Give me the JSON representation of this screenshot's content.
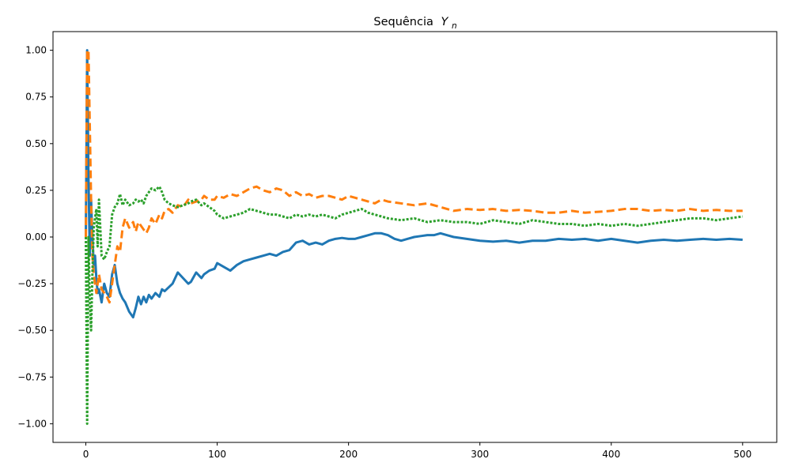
{
  "chart_data": {
    "type": "line",
    "title": "Sequência",
    "title_math": "Y",
    "title_math_sub": "n",
    "xlabel": "",
    "ylabel": "",
    "xlim": [
      -25,
      526
    ],
    "ylim": [
      -1.1,
      1.1
    ],
    "x_ticks": [
      0,
      100,
      200,
      300,
      400,
      500
    ],
    "x_tick_labels": [
      "0",
      "100",
      "200",
      "300",
      "400",
      "500"
    ],
    "y_ticks": [
      -1.0,
      -0.75,
      -0.5,
      -0.25,
      0.0,
      0.25,
      0.5,
      0.75,
      1.0
    ],
    "y_tick_labels": [
      "−1.00",
      "−0.75",
      "−0.50",
      "−0.25",
      "0.00",
      "0.25",
      "0.50",
      "0.75",
      "1.00"
    ],
    "grid": false,
    "legend": "none",
    "series": [
      {
        "color": "#1f77b4",
        "dash": "solid",
        "x": [
          0,
          1,
          2,
          3,
          4,
          5,
          6,
          7,
          8,
          9,
          10,
          12,
          14,
          16,
          18,
          20,
          22,
          24,
          26,
          28,
          30,
          33,
          36,
          38,
          40,
          42,
          44,
          46,
          48,
          50,
          53,
          56,
          58,
          60,
          63,
          66,
          70,
          74,
          78,
          80,
          84,
          88,
          90,
          94,
          98,
          100,
          105,
          110,
          115,
          120,
          125,
          130,
          135,
          140,
          145,
          150,
          155,
          160,
          165,
          170,
          175,
          180,
          185,
          190,
          195,
          200,
          205,
          210,
          215,
          220,
          225,
          230,
          235,
          240,
          245,
          250,
          255,
          260,
          265,
          270,
          275,
          280,
          290,
          300,
          310,
          320,
          330,
          340,
          350,
          360,
          370,
          380,
          390,
          400,
          410,
          420,
          430,
          440,
          450,
          460,
          470,
          480,
          490,
          500
        ],
        "y": [
          0.0,
          1.0,
          0.33,
          -0.1,
          0.2,
          0.0,
          -0.15,
          -0.1,
          -0.22,
          -0.3,
          -0.28,
          -0.35,
          -0.25,
          -0.3,
          -0.32,
          -0.2,
          -0.15,
          -0.25,
          -0.3,
          -0.33,
          -0.35,
          -0.4,
          -0.43,
          -0.38,
          -0.32,
          -0.36,
          -0.32,
          -0.35,
          -0.31,
          -0.33,
          -0.3,
          -0.32,
          -0.28,
          -0.29,
          -0.27,
          -0.25,
          -0.19,
          -0.22,
          -0.25,
          -0.24,
          -0.19,
          -0.22,
          -0.2,
          -0.18,
          -0.17,
          -0.14,
          -0.16,
          -0.18,
          -0.15,
          -0.13,
          -0.12,
          -0.11,
          -0.1,
          -0.09,
          -0.1,
          -0.08,
          -0.07,
          -0.03,
          -0.02,
          -0.04,
          -0.03,
          -0.04,
          -0.02,
          -0.01,
          -0.005,
          -0.01,
          -0.01,
          0.0,
          0.01,
          0.02,
          0.02,
          0.01,
          -0.01,
          -0.02,
          -0.01,
          0.0,
          0.005,
          0.01,
          0.01,
          0.02,
          0.01,
          0.0,
          -0.01,
          -0.02,
          -0.025,
          -0.02,
          -0.03,
          -0.02,
          -0.02,
          -0.01,
          -0.015,
          -0.01,
          -0.02,
          -0.01,
          -0.02,
          -0.03,
          -0.02,
          -0.015,
          -0.02,
          -0.015,
          -0.01,
          -0.015,
          -0.01,
          -0.015
        ]
      },
      {
        "color": "#ff7f0e",
        "dash": "dashed",
        "x": [
          0,
          1,
          2,
          3,
          4,
          5,
          6,
          7,
          8,
          9,
          10,
          12,
          14,
          16,
          18,
          20,
          22,
          24,
          26,
          28,
          30,
          33,
          36,
          38,
          40,
          42,
          44,
          46,
          48,
          50,
          53,
          56,
          58,
          60,
          63,
          66,
          70,
          74,
          78,
          80,
          84,
          88,
          90,
          94,
          98,
          100,
          105,
          110,
          115,
          120,
          125,
          130,
          135,
          140,
          145,
          150,
          155,
          160,
          165,
          170,
          175,
          180,
          185,
          190,
          195,
          200,
          205,
          210,
          215,
          220,
          225,
          230,
          240,
          250,
          260,
          270,
          280,
          290,
          300,
          310,
          320,
          330,
          340,
          350,
          360,
          370,
          380,
          390,
          400,
          410,
          420,
          430,
          440,
          450,
          460,
          470,
          480,
          490,
          500
        ],
        "y": [
          0.0,
          1.0,
          1.0,
          0.6,
          0.2,
          -0.1,
          -0.2,
          -0.25,
          -0.3,
          -0.25,
          -0.2,
          -0.28,
          -0.3,
          -0.32,
          -0.35,
          -0.25,
          -0.15,
          -0.05,
          -0.08,
          0.05,
          0.1,
          0.05,
          0.08,
          0.03,
          0.08,
          0.06,
          0.04,
          0.02,
          0.05,
          0.1,
          0.07,
          0.12,
          0.1,
          0.14,
          0.15,
          0.13,
          0.17,
          0.16,
          0.2,
          0.18,
          0.19,
          0.2,
          0.22,
          0.2,
          0.2,
          0.22,
          0.21,
          0.23,
          0.22,
          0.24,
          0.26,
          0.27,
          0.25,
          0.24,
          0.26,
          0.25,
          0.22,
          0.24,
          0.22,
          0.23,
          0.21,
          0.22,
          0.22,
          0.21,
          0.2,
          0.22,
          0.21,
          0.2,
          0.19,
          0.18,
          0.2,
          0.19,
          0.18,
          0.17,
          0.18,
          0.16,
          0.14,
          0.15,
          0.145,
          0.15,
          0.14,
          0.145,
          0.14,
          0.13,
          0.13,
          0.14,
          0.13,
          0.135,
          0.14,
          0.15,
          0.15,
          0.14,
          0.145,
          0.14,
          0.15,
          0.14,
          0.145,
          0.14,
          0.14
        ]
      },
      {
        "color": "#2ca02c",
        "dash": "dotted",
        "x": [
          0,
          1,
          2,
          3,
          4,
          5,
          6,
          7,
          8,
          9,
          10,
          12,
          14,
          16,
          18,
          20,
          22,
          24,
          26,
          28,
          30,
          33,
          36,
          38,
          40,
          42,
          44,
          46,
          48,
          50,
          53,
          56,
          58,
          60,
          63,
          66,
          70,
          74,
          78,
          80,
          84,
          88,
          90,
          94,
          98,
          100,
          105,
          110,
          115,
          120,
          125,
          130,
          135,
          140,
          145,
          150,
          155,
          160,
          165,
          170,
          175,
          180,
          185,
          190,
          195,
          200,
          205,
          210,
          215,
          220,
          225,
          230,
          240,
          250,
          260,
          270,
          280,
          290,
          300,
          310,
          320,
          330,
          340,
          350,
          360,
          370,
          380,
          390,
          400,
          410,
          420,
          430,
          440,
          450,
          460,
          470,
          480,
          490,
          500
        ],
        "y": [
          0.0,
          -1.0,
          0.0,
          -0.33,
          -0.5,
          -0.2,
          0.05,
          0.1,
          0.15,
          -0.05,
          0.2,
          -0.1,
          -0.12,
          -0.08,
          -0.05,
          0.12,
          0.16,
          0.18,
          0.23,
          0.17,
          0.2,
          0.17,
          0.18,
          0.2,
          0.19,
          0.2,
          0.18,
          0.22,
          0.24,
          0.26,
          0.25,
          0.27,
          0.24,
          0.2,
          0.18,
          0.17,
          0.16,
          0.17,
          0.18,
          0.19,
          0.2,
          0.17,
          0.18,
          0.16,
          0.14,
          0.12,
          0.1,
          0.11,
          0.12,
          0.13,
          0.15,
          0.14,
          0.13,
          0.12,
          0.12,
          0.11,
          0.1,
          0.12,
          0.11,
          0.12,
          0.11,
          0.12,
          0.11,
          0.1,
          0.12,
          0.13,
          0.14,
          0.15,
          0.13,
          0.12,
          0.11,
          0.1,
          0.09,
          0.1,
          0.08,
          0.09,
          0.08,
          0.08,
          0.07,
          0.09,
          0.08,
          0.07,
          0.09,
          0.08,
          0.07,
          0.07,
          0.06,
          0.07,
          0.06,
          0.07,
          0.06,
          0.07,
          0.08,
          0.09,
          0.1,
          0.1,
          0.09,
          0.1,
          0.11
        ]
      }
    ]
  }
}
